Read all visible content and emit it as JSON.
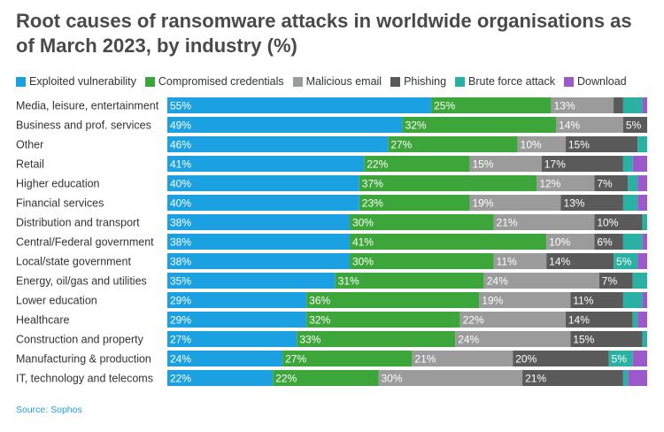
{
  "title": "Root causes of ransomware attacks in worldwide organisations as of March 2023, by industry (%)",
  "source": "Source: Sophos",
  "legend": [
    {
      "label": "Exploited vulnerability",
      "color": "#1ba1e2"
    },
    {
      "label": "Compromised credentials",
      "color": "#3da63a"
    },
    {
      "label": "Malicious email",
      "color": "#9b9b9b"
    },
    {
      "label": "Phishing",
      "color": "#5a5a5a"
    },
    {
      "label": "Brute force attack",
      "color": "#2bb1a3"
    },
    {
      "label": "Download",
      "color": "#9b59c9"
    }
  ],
  "chart_data": {
    "type": "bar",
    "orientation": "horizontal",
    "stacked": true,
    "categories": [
      "Media, leisure, entertainment",
      "Business and prof. services",
      "Other",
      "Retail",
      "Higher education",
      "Financial services",
      "Distribution and transport",
      "Central/Federal government",
      "Local/state government",
      "Energy, oil/gas and utilities",
      "Lower education",
      "Healthcare",
      "Construction and property",
      "Manufacturing & production",
      "IT, technology and telecoms"
    ],
    "series": [
      {
        "name": "Exploited vulnerability",
        "color": "#1ba1e2",
        "values": [
          55,
          49,
          46,
          41,
          40,
          40,
          38,
          38,
          38,
          35,
          29,
          29,
          27,
          24,
          22
        ]
      },
      {
        "name": "Compromised credentials",
        "color": "#3da63a",
        "values": [
          25,
          32,
          27,
          22,
          37,
          23,
          30,
          41,
          30,
          31,
          36,
          32,
          33,
          27,
          22
        ]
      },
      {
        "name": "Malicious email",
        "color": "#9b9b9b",
        "values": [
          13,
          14,
          10,
          15,
          12,
          19,
          21,
          10,
          11,
          24,
          19,
          22,
          24,
          21,
          30
        ]
      },
      {
        "name": "Phishing",
        "color": "#5a5a5a",
        "values": [
          2,
          5,
          15,
          17,
          7,
          13,
          10,
          6,
          14,
          7,
          11,
          14,
          15,
          20,
          21
        ]
      },
      {
        "name": "Brute force attack",
        "color": "#2bb1a3",
        "values": [
          4,
          0,
          2,
          2,
          2,
          3,
          1,
          4,
          5,
          3,
          4,
          1,
          1,
          5,
          1
        ]
      },
      {
        "name": "Download",
        "color": "#9b59c9",
        "values": [
          1,
          0,
          0,
          3,
          2,
          2,
          0,
          1,
          2,
          0,
          1,
          2,
          0,
          3,
          4
        ]
      }
    ],
    "data_labels": [
      [
        "55%",
        "25%",
        "13%",
        "",
        "",
        ""
      ],
      [
        "49%",
        "32%",
        "14%",
        "5%",
        "",
        ""
      ],
      [
        "46%",
        "27%",
        "10%",
        "15%",
        "",
        ""
      ],
      [
        "41%",
        "22%",
        "15%",
        "17%",
        "",
        ""
      ],
      [
        "40%",
        "37%",
        "12%",
        "7%",
        "",
        ""
      ],
      [
        "40%",
        "23%",
        "19%",
        "13%",
        "",
        ""
      ],
      [
        "38%",
        "30%",
        "21%",
        "10%",
        "",
        ""
      ],
      [
        "38%",
        "41%",
        "10%",
        "6%",
        "",
        ""
      ],
      [
        "38%",
        "30%",
        "11%",
        "14%",
        "5%",
        ""
      ],
      [
        "35%",
        "31%",
        "24%",
        "7%",
        "",
        ""
      ],
      [
        "29%",
        "36%",
        "19%",
        "11%",
        "",
        ""
      ],
      [
        "29%",
        "32%",
        "22%",
        "14%",
        "",
        ""
      ],
      [
        "27%",
        "33%",
        "24%",
        "15%",
        "",
        ""
      ],
      [
        "24%",
        "27%",
        "21%",
        "20%",
        "5%",
        ""
      ],
      [
        "22%",
        "22%",
        "30%",
        "21%",
        "",
        ""
      ]
    ],
    "xlim": [
      0,
      100
    ],
    "grid": false,
    "legend_position": "top-left"
  }
}
